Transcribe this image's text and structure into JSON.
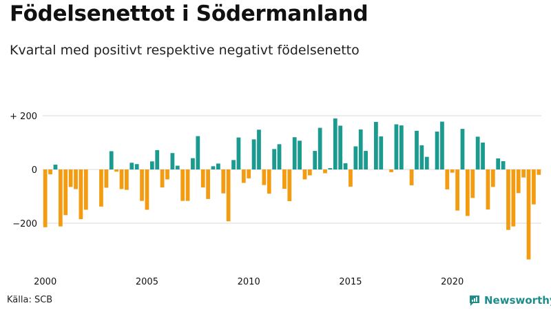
{
  "title": "Födelsenettot i Södermanland",
  "subtitle": "Kvartal med positivt respektive negativt födelsenetto",
  "source": "Källa: SCB",
  "brand": {
    "name": "Newsworthy",
    "icon": "newsworthy-logo-icon"
  },
  "colors": {
    "positive": "#1b9a8f",
    "negative": "#f39c12",
    "grid": "#d9d9d9",
    "text": "#111111"
  },
  "chart_data": {
    "type": "bar",
    "title": "Födelsenettot i Södermanland",
    "xlabel": "",
    "ylabel": "",
    "ylim": [
      -350,
      220
    ],
    "y_ticks": [
      {
        "value": 200,
        "label": "+ 200"
      },
      {
        "value": 0,
        "label": "0"
      },
      {
        "value": -200,
        "label": "−200"
      }
    ],
    "x_ticks": [
      "2000",
      "2005",
      "2010",
      "2015",
      "2020"
    ],
    "start_year": 2000,
    "periods": "quarterly 2000 Q1 – 2024 Q2",
    "values": [
      -215,
      -18,
      18,
      -212,
      -170,
      -65,
      -73,
      -185,
      -150,
      0,
      0,
      -138,
      -68,
      68,
      -8,
      -73,
      -76,
      25,
      20,
      -117,
      -150,
      30,
      72,
      -67,
      -37,
      61,
      14,
      -117,
      -117,
      42,
      124,
      -67,
      -110,
      12,
      22,
      -89,
      -193,
      35,
      119,
      -50,
      -33,
      112,
      148,
      -58,
      -90,
      76,
      94,
      -72,
      -118,
      120,
      107,
      -37,
      -22,
      69,
      155,
      -14,
      5,
      190,
      163,
      23,
      -64,
      86,
      149,
      69,
      0,
      177,
      123,
      0,
      -10,
      168,
      164,
      0,
      -59,
      144,
      90,
      47,
      0,
      141,
      178,
      -74,
      -12,
      -153,
      151,
      -173,
      -106,
      122,
      100,
      -149,
      -65,
      41,
      31,
      -225,
      -212,
      -88,
      -30,
      -335,
      -130,
      -20
    ]
  }
}
